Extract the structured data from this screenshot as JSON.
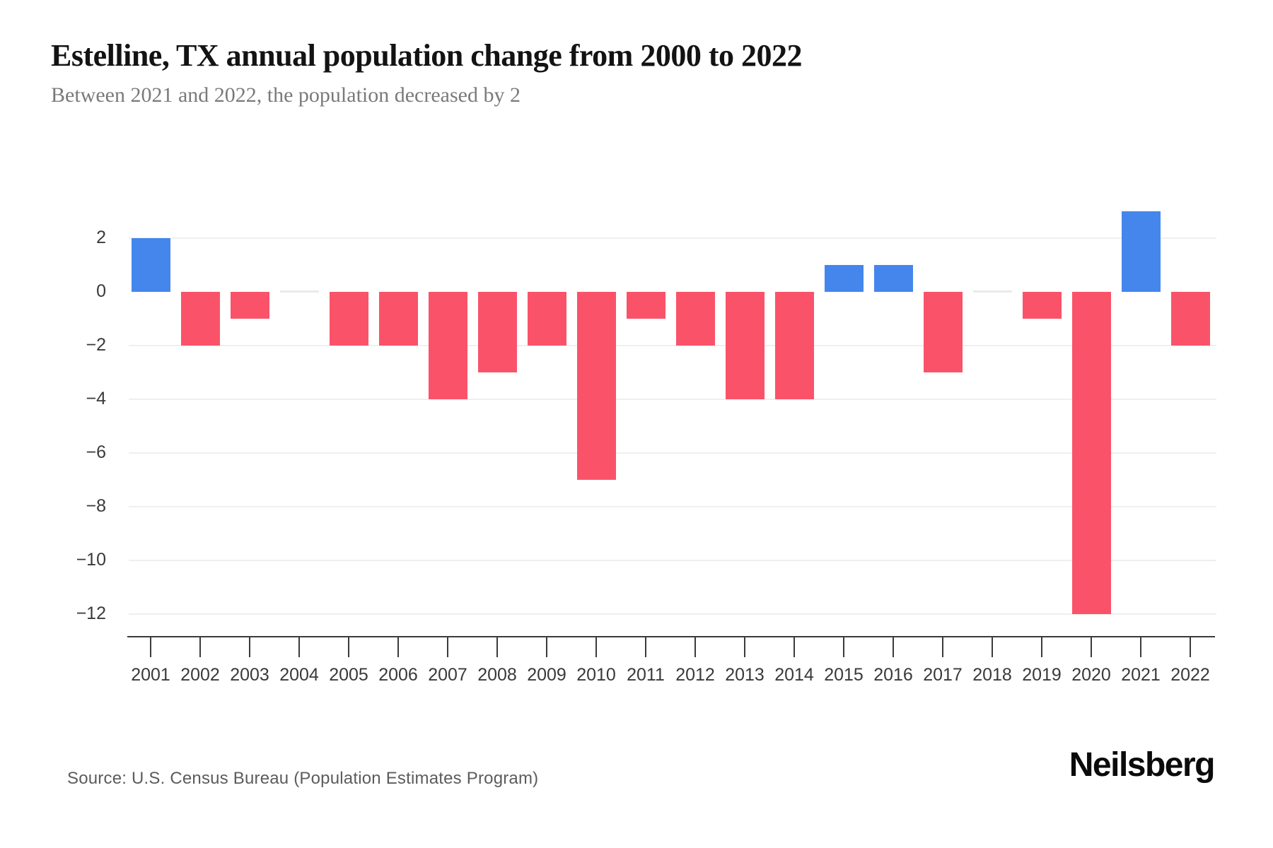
{
  "header": {
    "title": "Estelline, TX annual population change from 2000 to 2022",
    "subtitle": "Between 2021 and 2022, the population decreased by 2"
  },
  "footer": {
    "source": "Source: U.S. Census Bureau (Population Estimates Program)",
    "brand": "Neilsberg"
  },
  "chart_data": {
    "type": "bar",
    "title": "Estelline, TX annual population change from 2000 to 2022",
    "subtitle": "Between 2021 and 2022, the population decreased by 2",
    "xlabel": "",
    "ylabel": "",
    "categories": [
      "2001",
      "2002",
      "2003",
      "2004",
      "2005",
      "2006",
      "2007",
      "2008",
      "2009",
      "2010",
      "2011",
      "2012",
      "2013",
      "2014",
      "2015",
      "2016",
      "2017",
      "2018",
      "2019",
      "2020",
      "2021",
      "2022"
    ],
    "values": [
      2,
      -2,
      -1,
      0,
      -2,
      -2,
      -4,
      -3,
      -2,
      -7,
      -1,
      -2,
      -4,
      -4,
      1,
      1,
      -3,
      0,
      -1,
      -12,
      3,
      -2
    ],
    "ylim": [
      -12,
      3
    ],
    "yticks": [
      2,
      0,
      -2,
      -4,
      -6,
      -8,
      -10,
      -12
    ],
    "ytick_labels": [
      "2",
      "0",
      "−2",
      "−4",
      "−6",
      "−8",
      "−10",
      "−12"
    ],
    "gridline_values": [
      2,
      -2,
      -4,
      -6,
      -8,
      -10,
      -12
    ],
    "grid": "horizontal-only",
    "legend": "none",
    "colors": {
      "positive_bar": "#4486ec",
      "negative_bar": "#fa5369",
      "zero_bar": "#eaeaea",
      "gridline": "#efefef",
      "axis": "#3b3b3b",
      "tick_label": "#3a3a3a"
    }
  }
}
